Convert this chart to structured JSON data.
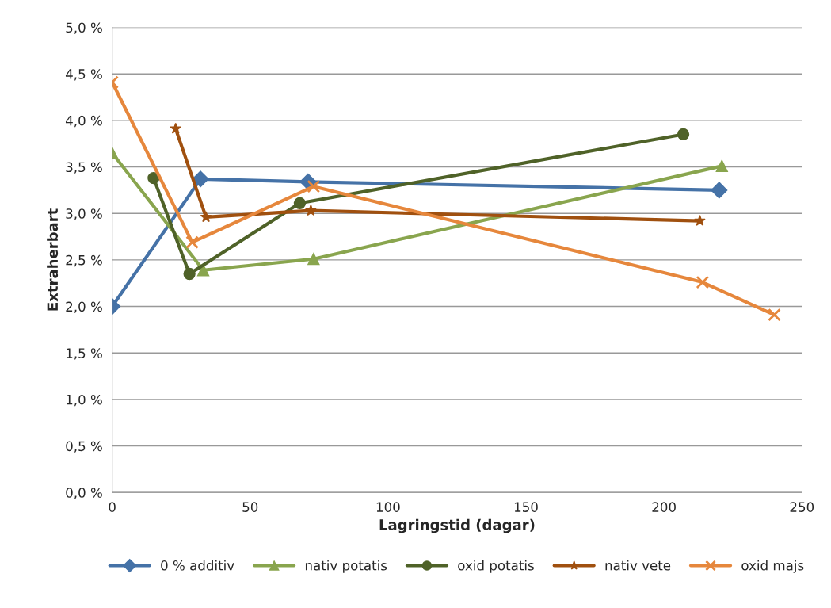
{
  "chart_data": {
    "type": "line",
    "xlabel": "Lagringstid (dagar)",
    "ylabel": "Extraherbart",
    "xlim": [
      0,
      250
    ],
    "xticks": [
      0,
      50,
      100,
      150,
      200,
      250
    ],
    "ylim": [
      0,
      5
    ],
    "yticks": [
      {
        "value": 0,
        "label": "0,0 %"
      },
      {
        "value": 0.5,
        "label": "0,5 %"
      },
      {
        "value": 1,
        "label": "1,0 %"
      },
      {
        "value": 1.5,
        "label": "1,5 %"
      },
      {
        "value": 2,
        "label": "2,0 %"
      },
      {
        "value": 2.5,
        "label": "2,5 %"
      },
      {
        "value": 3,
        "label": "3,0 %"
      },
      {
        "value": 3.5,
        "label": "3,5 %"
      },
      {
        "value": 4,
        "label": "4,0 %"
      },
      {
        "value": 4.5,
        "label": "4,5 %"
      },
      {
        "value": 5,
        "label": "5,0 %"
      }
    ],
    "grid": "y",
    "legend": "bottom",
    "series": [
      {
        "name": "0 % additiv",
        "color": "#4572a7",
        "marker": "diamond",
        "x": [
          0,
          32,
          71,
          220
        ],
        "values": [
          2.0,
          3.37,
          3.34,
          3.25
        ]
      },
      {
        "name": "nativ potatis",
        "color": "#89a54e",
        "marker": "triangle",
        "x": [
          0,
          33,
          73,
          221
        ],
        "values": [
          3.65,
          2.39,
          2.51,
          3.51
        ]
      },
      {
        "name": "oxid potatis",
        "color": "#4f6228",
        "marker": "circle",
        "x": [
          15,
          28,
          68,
          207
        ],
        "values": [
          3.38,
          2.35,
          3.11,
          3.85
        ]
      },
      {
        "name": "nativ vete",
        "color": "#a0500f",
        "marker": "star",
        "x": [
          23,
          34,
          72,
          213
        ],
        "values": [
          3.91,
          2.96,
          3.03,
          2.92
        ]
      },
      {
        "name": "oxid majs",
        "color": "#e6873c",
        "marker": "cross",
        "x": [
          0,
          29,
          73,
          214,
          240
        ],
        "values": [
          4.41,
          2.69,
          3.29,
          2.26,
          1.91
        ]
      }
    ]
  }
}
